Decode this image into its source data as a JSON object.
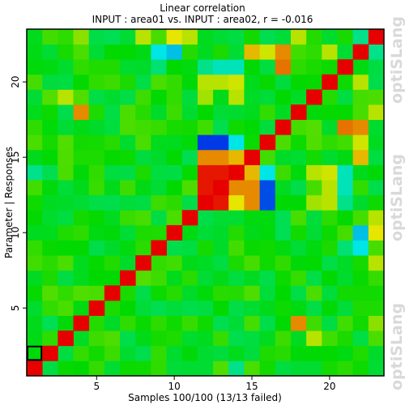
{
  "chart_data": {
    "type": "heatmap",
    "title": "Linear correlation",
    "subtitle": "INPUT : area01 vs. INPUT : area02, r = -0.016",
    "xlabel": "Samples 100/100 (13/13 failed)",
    "ylabel": "Parameter | Responses",
    "x_ticks": [
      5,
      10,
      15,
      20
    ],
    "y_ticks": [
      5,
      10,
      15,
      20
    ],
    "size": 23,
    "xlim": [
      0.5,
      23.5
    ],
    "ylim": [
      0.5,
      23.5
    ],
    "highlight_cell": [
      1,
      2
    ],
    "color_scale": [
      "#0026e6",
      "#00e6e6",
      "#00d900",
      "#e6e600",
      "#e60000"
    ],
    "value_range": [
      -1,
      1
    ],
    "cells": [
      {
        "x": 12,
        "y": 16,
        "value": -0.95
      },
      {
        "x": 13,
        "y": 16,
        "value": -0.95
      },
      {
        "x": 14,
        "y": 16,
        "value": -0.5
      },
      {
        "x": 16,
        "y": 13,
        "value": -0.9
      },
      {
        "x": 16,
        "y": 12,
        "value": -0.9
      },
      {
        "x": 12,
        "y": 14,
        "value": 0.95
      },
      {
        "x": 13,
        "y": 14,
        "value": 0.95
      },
      {
        "x": 12,
        "y": 13,
        "value": 0.95
      },
      {
        "x": 13,
        "y": 13,
        "value": 0.95
      },
      {
        "x": 12,
        "y": 12,
        "value": 0.95
      },
      {
        "x": 13,
        "y": 12,
        "value": 0.95
      },
      {
        "x": 12,
        "y": 15,
        "value": 0.7
      },
      {
        "x": 13,
        "y": 15,
        "value": 0.7
      },
      {
        "x": 14,
        "y": 15,
        "value": 0.6
      },
      {
        "x": 14,
        "y": 14,
        "value": 0.7
      },
      {
        "x": 14,
        "y": 13,
        "value": 0.7
      },
      {
        "x": 14,
        "y": 12,
        "value": 0.5
      },
      {
        "x": 8,
        "y": 23,
        "value": 0.4
      },
      {
        "x": 10,
        "y": 23,
        "value": 0.5
      },
      {
        "x": 9,
        "y": 22,
        "value": -0.5
      },
      {
        "x": 13,
        "y": 21,
        "value": -0.4
      },
      {
        "x": 14,
        "y": 21,
        "value": -0.4
      },
      {
        "x": 17,
        "y": 21,
        "value": 0.75
      },
      {
        "x": 20,
        "y": 22,
        "value": 0.4
      },
      {
        "x": 16,
        "y": 22,
        "value": 0.45
      },
      {
        "x": 22,
        "y": 23,
        "value": -0.3
      },
      {
        "x": 12,
        "y": 20,
        "value": 0.4
      },
      {
        "x": 13,
        "y": 20,
        "value": 0.4
      },
      {
        "x": 14,
        "y": 20,
        "value": 0.45
      },
      {
        "x": 4,
        "y": 18,
        "value": 0.7
      },
      {
        "x": 22,
        "y": 17,
        "value": 0.7
      },
      {
        "x": 23,
        "y": 18,
        "value": 0.4
      },
      {
        "x": 1,
        "y": 14,
        "value": -0.3
      },
      {
        "x": 19,
        "y": 14,
        "value": 0.4
      },
      {
        "x": 21,
        "y": 13,
        "value": -0.4
      },
      {
        "x": 21,
        "y": 12,
        "value": -0.3
      },
      {
        "x": 19,
        "y": 12,
        "value": 0.35
      },
      {
        "x": 22,
        "y": 15,
        "value": 0.6
      },
      {
        "x": 23,
        "y": 11,
        "value": 0.4
      },
      {
        "x": 22,
        "y": 10,
        "value": -0.6
      },
      {
        "x": 21,
        "y": 9,
        "value": -0.25
      },
      {
        "x": 20,
        "y": 8,
        "value": -0.15
      },
      {
        "x": 18,
        "y": 6,
        "value": -0.15
      },
      {
        "x": 18,
        "y": 4,
        "value": 0.7
      },
      {
        "x": 19,
        "y": 3,
        "value": 0.4
      },
      {
        "x": 23,
        "y": 4,
        "value": 0.3
      },
      {
        "x": 5,
        "y": 19,
        "value": -0.15
      },
      {
        "x": 7,
        "y": 19,
        "value": -0.15
      },
      {
        "x": 7,
        "y": 21,
        "value": -0.1
      }
    ]
  },
  "watermarks": [
    "optiSLang",
    "optiSLang",
    "optiSLang"
  ]
}
